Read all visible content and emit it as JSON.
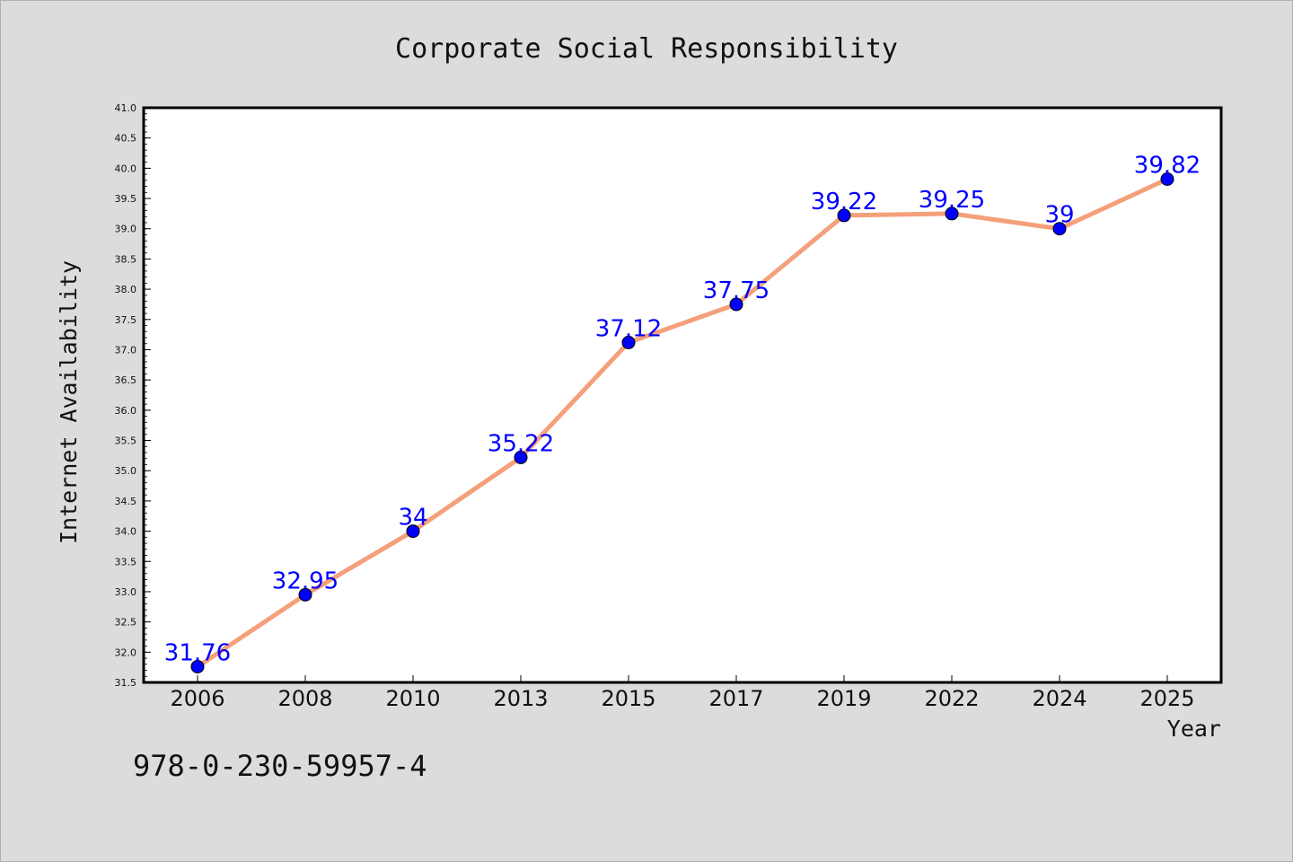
{
  "chart_data": {
    "type": "line",
    "title": "Corporate Social Responsibility",
    "xlabel": "Year",
    "ylabel": "Internet Availability",
    "categories": [
      "2006",
      "2008",
      "2010",
      "2013",
      "2015",
      "2017",
      "2019",
      "2022",
      "2024",
      "2025"
    ],
    "series": [
      {
        "values": [
          31.76,
          32.95,
          34,
          35.22,
          37.12,
          37.75,
          39.22,
          39.25,
          39,
          39.82
        ],
        "labels": [
          "31.76",
          "32.95",
          "34",
          "35.22",
          "37.12",
          "37.75",
          "39.22",
          "39.25",
          "39",
          "39.82"
        ]
      }
    ],
    "ylim": [
      31.5,
      41.0
    ],
    "yticks": [
      "31.5",
      "32.0",
      "32.5",
      "33.0",
      "33.5",
      "34.0",
      "34.5",
      "35.0",
      "35.5",
      "36.0",
      "36.5",
      "37.0",
      "37.5",
      "38.0",
      "38.5",
      "39.0",
      "39.5",
      "40.0",
      "40.5",
      "41.0"
    ],
    "grid": false,
    "legend": "none",
    "colors": {
      "line": "#f4a07a",
      "marker": "#0000ff",
      "label": "#0000ff",
      "background": "#dcdcdc",
      "plot_background": "#ffffff"
    }
  },
  "footnote": "978-0-230-59957-4"
}
